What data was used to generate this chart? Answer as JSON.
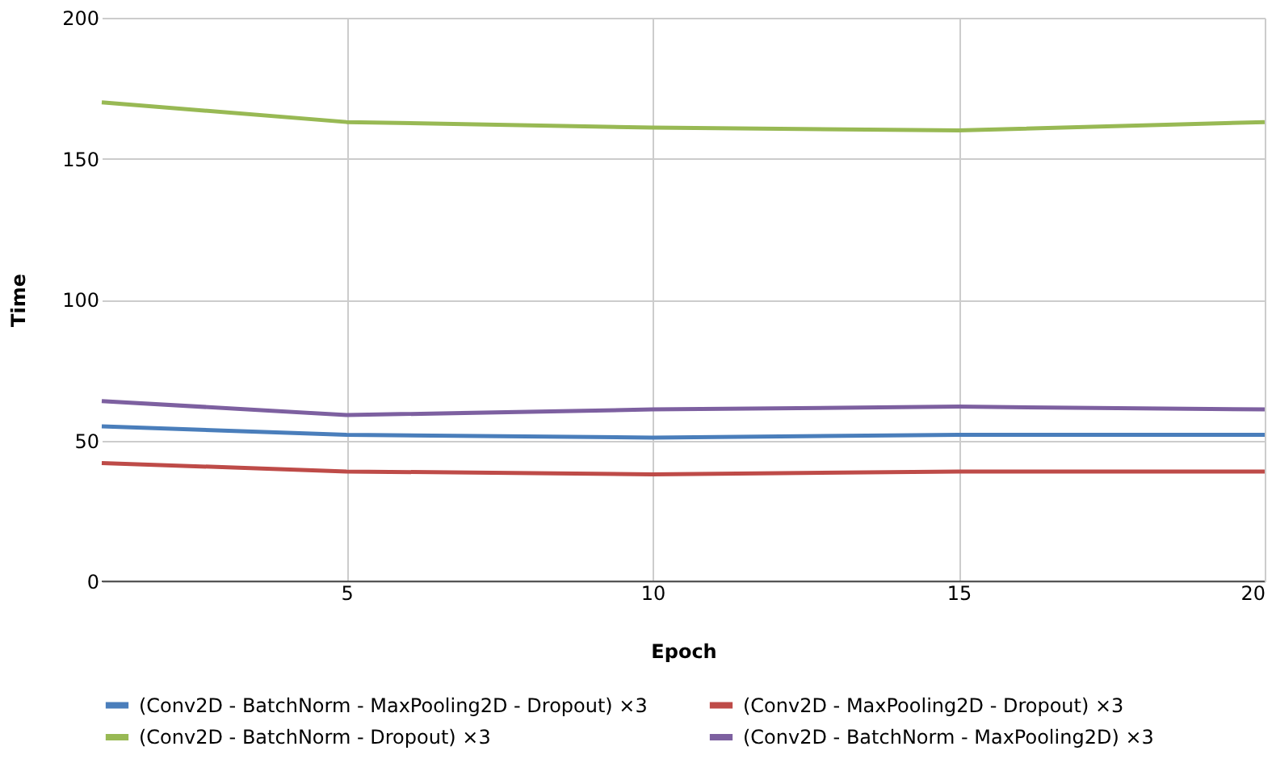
{
  "chart_data": {
    "type": "line",
    "xlabel": "Epoch",
    "ylabel": "Time",
    "x": [
      1,
      5,
      10,
      15,
      20
    ],
    "xlim": [
      1,
      20
    ],
    "xticks": [
      5,
      10,
      15,
      20
    ],
    "ylim": [
      0,
      200
    ],
    "yticks": [
      0,
      50,
      100,
      150,
      200
    ],
    "grid": true,
    "legend": "bottom",
    "marker": "none",
    "line_style": "solid",
    "series": [
      {
        "name": "(Conv2D - BatchNorm - MaxPooling2D - Dropout) ×3",
        "color": "#4a7ebb",
        "values": [
          55,
          52,
          51,
          52,
          52
        ]
      },
      {
        "name": "(Conv2D - MaxPooling2D - Dropout) ×3",
        "color": "#be4b48",
        "values": [
          42,
          39,
          38,
          39,
          39
        ]
      },
      {
        "name": "(Conv2D - BatchNorm - Dropout) ×3",
        "color": "#98b954",
        "values": [
          170,
          163,
          161,
          160,
          163
        ]
      },
      {
        "name": "(Conv2D - BatchNorm - MaxPooling2D) ×3",
        "color": "#7d60a0",
        "values": [
          64,
          59,
          61,
          62,
          61
        ]
      }
    ]
  }
}
